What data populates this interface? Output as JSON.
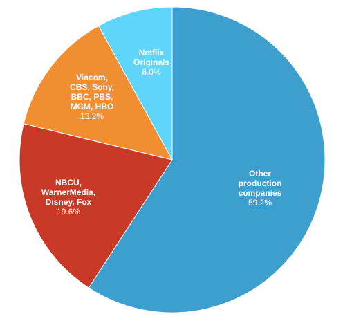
{
  "chart_data": {
    "type": "pie",
    "categories": [
      "Other production companies",
      "NBCU, WarnerMedia, Disney, Fox",
      "Viacom, CBS, Sony, BBC, PBS, MGM, HBO",
      "Netflix Originals"
    ],
    "values": [
      59.2,
      19.6,
      13.2,
      8.0
    ],
    "value_labels": [
      "59.2%",
      "19.6%",
      "13.2%",
      "8.0%"
    ],
    "colors": [
      "#3d9fce",
      "#c83a27",
      "#f28e32",
      "#5ed5f9"
    ]
  }
}
